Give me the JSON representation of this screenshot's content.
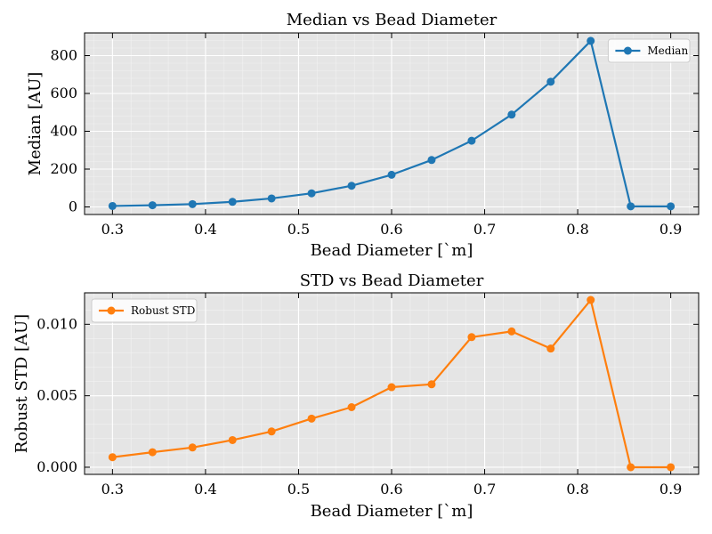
{
  "chart_data": [
    {
      "type": "line",
      "title": "Median vs Bead Diameter",
      "xlabel": "Bead Diameter [`m]",
      "ylabel": "Median [AU]",
      "xlim": [
        0.27,
        0.93
      ],
      "ylim": [
        -40,
        920
      ],
      "xticks": [
        0.3,
        0.4,
        0.5,
        0.6,
        0.7,
        0.8,
        0.9
      ],
      "xtick_labels": [
        "0.3",
        "0.4",
        "0.5",
        "0.6",
        "0.7",
        "0.8",
        "0.9"
      ],
      "yticks": [
        0,
        200,
        400,
        600,
        800
      ],
      "ytick_labels": [
        "0",
        "200",
        "400",
        "600",
        "800"
      ],
      "grid": true,
      "legend_position": "top-right",
      "series": [
        {
          "name": "Median",
          "color": "#1f77b4",
          "x": [
            0.3,
            0.343,
            0.386,
            0.429,
            0.471,
            0.514,
            0.557,
            0.6,
            0.643,
            0.686,
            0.729,
            0.771,
            0.814,
            0.857,
            0.9
          ],
          "y": [
            5,
            9,
            15,
            27,
            45,
            72,
            112,
            170,
            248,
            350,
            488,
            662,
            878,
            3,
            3
          ]
        }
      ]
    },
    {
      "type": "line",
      "title": "STD vs Bead Diameter",
      "xlabel": "Bead Diameter [`m]",
      "ylabel": "Robust STD [AU]",
      "xlim": [
        0.27,
        0.93
      ],
      "ylim": [
        -0.0005,
        0.0122
      ],
      "xticks": [
        0.3,
        0.4,
        0.5,
        0.6,
        0.7,
        0.8,
        0.9
      ],
      "xtick_labels": [
        "0.3",
        "0.4",
        "0.5",
        "0.6",
        "0.7",
        "0.8",
        "0.9"
      ],
      "yticks": [
        0,
        0.005,
        0.01
      ],
      "ytick_labels": [
        "0.000",
        "0.005",
        "0.010"
      ],
      "grid": true,
      "legend_position": "top-left",
      "series": [
        {
          "name": "Robust STD",
          "color": "#ff7f0e",
          "x": [
            0.3,
            0.343,
            0.386,
            0.429,
            0.471,
            0.514,
            0.557,
            0.6,
            0.643,
            0.686,
            0.729,
            0.771,
            0.814,
            0.857,
            0.9
          ],
          "y": [
            0.0007,
            0.00105,
            0.00138,
            0.0019,
            0.0025,
            0.0034,
            0.0042,
            0.0056,
            0.0058,
            0.0091,
            0.0095,
            0.0083,
            0.0117,
            0.0,
            0.0
          ]
        }
      ]
    }
  ]
}
